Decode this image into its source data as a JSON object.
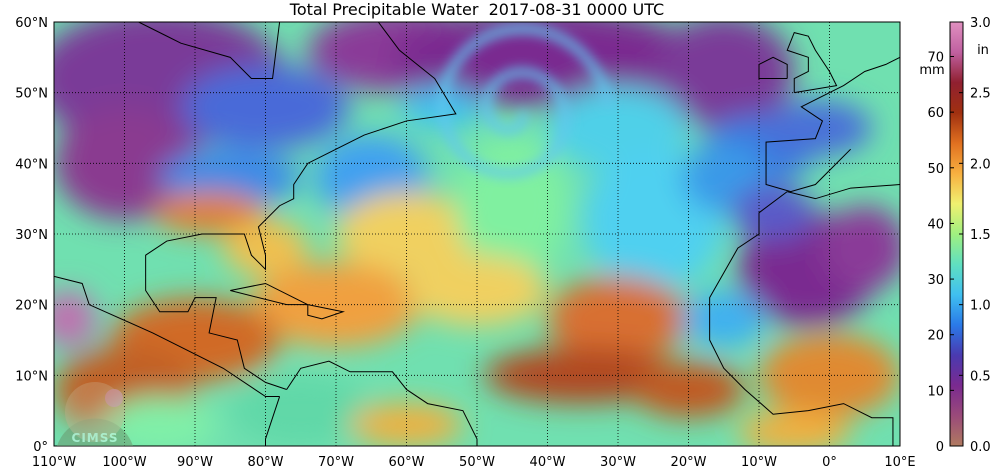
{
  "title": "Total Precipitable Water  2017-08-31 0000 UTC",
  "map": {
    "projection": "equirectangular",
    "lon_range": [
      -110,
      10
    ],
    "lat_range": [
      0,
      60
    ],
    "grid": "dotted, every 10 degrees",
    "lat_labels": [
      "0°",
      "10°N",
      "20°N",
      "30°N",
      "40°N",
      "50°N",
      "60°N"
    ],
    "lon_labels": [
      "110°W",
      "100°W",
      "90°W",
      "80°W",
      "70°W",
      "60°W",
      "50°W",
      "40°W",
      "30°W",
      "20°W",
      "10°W",
      "0°",
      "10°E"
    ]
  },
  "colorbar": {
    "mm_unit": "mm",
    "in_unit": "in",
    "mm_ticks": [
      "0",
      "10",
      "20",
      "30",
      "40",
      "50",
      "60",
      "70"
    ],
    "in_ticks": [
      "0.0",
      "0.5",
      "1.0",
      "1.5",
      "2.0",
      "2.5",
      "3.0"
    ],
    "range_mm": [
      0,
      76.2
    ],
    "colors": [
      "#b07a60",
      "#9a4a7a",
      "#7a2a90",
      "#4a3ab0",
      "#2a7ae8",
      "#40c0f0",
      "#60e0c0",
      "#a0f080",
      "#f0f070",
      "#f8b040",
      "#e07020",
      "#a03010",
      "#902030",
      "#c060a0",
      "#e090c0"
    ]
  },
  "logo": {
    "text": "CIMSS"
  }
}
